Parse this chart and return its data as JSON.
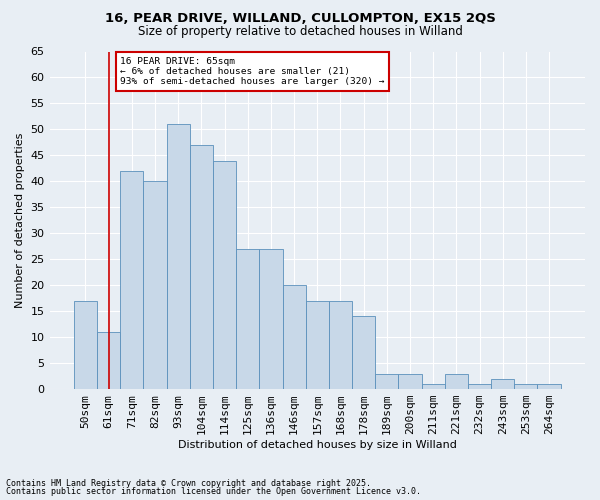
{
  "title1": "16, PEAR DRIVE, WILLAND, CULLOMPTON, EX15 2QS",
  "title2": "Size of property relative to detached houses in Willand",
  "xlabel": "Distribution of detached houses by size in Willand",
  "ylabel": "Number of detached properties",
  "categories": [
    "50sqm",
    "61sqm",
    "71sqm",
    "82sqm",
    "93sqm",
    "104sqm",
    "114sqm",
    "125sqm",
    "136sqm",
    "146sqm",
    "157sqm",
    "168sqm",
    "178sqm",
    "189sqm",
    "200sqm",
    "211sqm",
    "221sqm",
    "232sqm",
    "243sqm",
    "253sqm",
    "264sqm"
  ],
  "values": [
    17,
    11,
    42,
    40,
    51,
    47,
    44,
    27,
    27,
    20,
    17,
    17,
    14,
    3,
    3,
    1,
    3,
    1,
    2,
    1,
    1
  ],
  "bar_color": "#c8d8e8",
  "bar_edge_color": "#5a90bb",
  "vline_x": 1,
  "vline_color": "#cc0000",
  "annotation_text": "16 PEAR DRIVE: 65sqm\n← 6% of detached houses are smaller (21)\n93% of semi-detached houses are larger (320) →",
  "annotation_box_color": "#ffffff",
  "annotation_box_edge_color": "#cc0000",
  "ylim": [
    0,
    65
  ],
  "yticks": [
    0,
    5,
    10,
    15,
    20,
    25,
    30,
    35,
    40,
    45,
    50,
    55,
    60,
    65
  ],
  "background_color": "#e8eef4",
  "grid_color": "#ffffff",
  "footer1": "Contains HM Land Registry data © Crown copyright and database right 2025.",
  "footer2": "Contains public sector information licensed under the Open Government Licence v3.0."
}
